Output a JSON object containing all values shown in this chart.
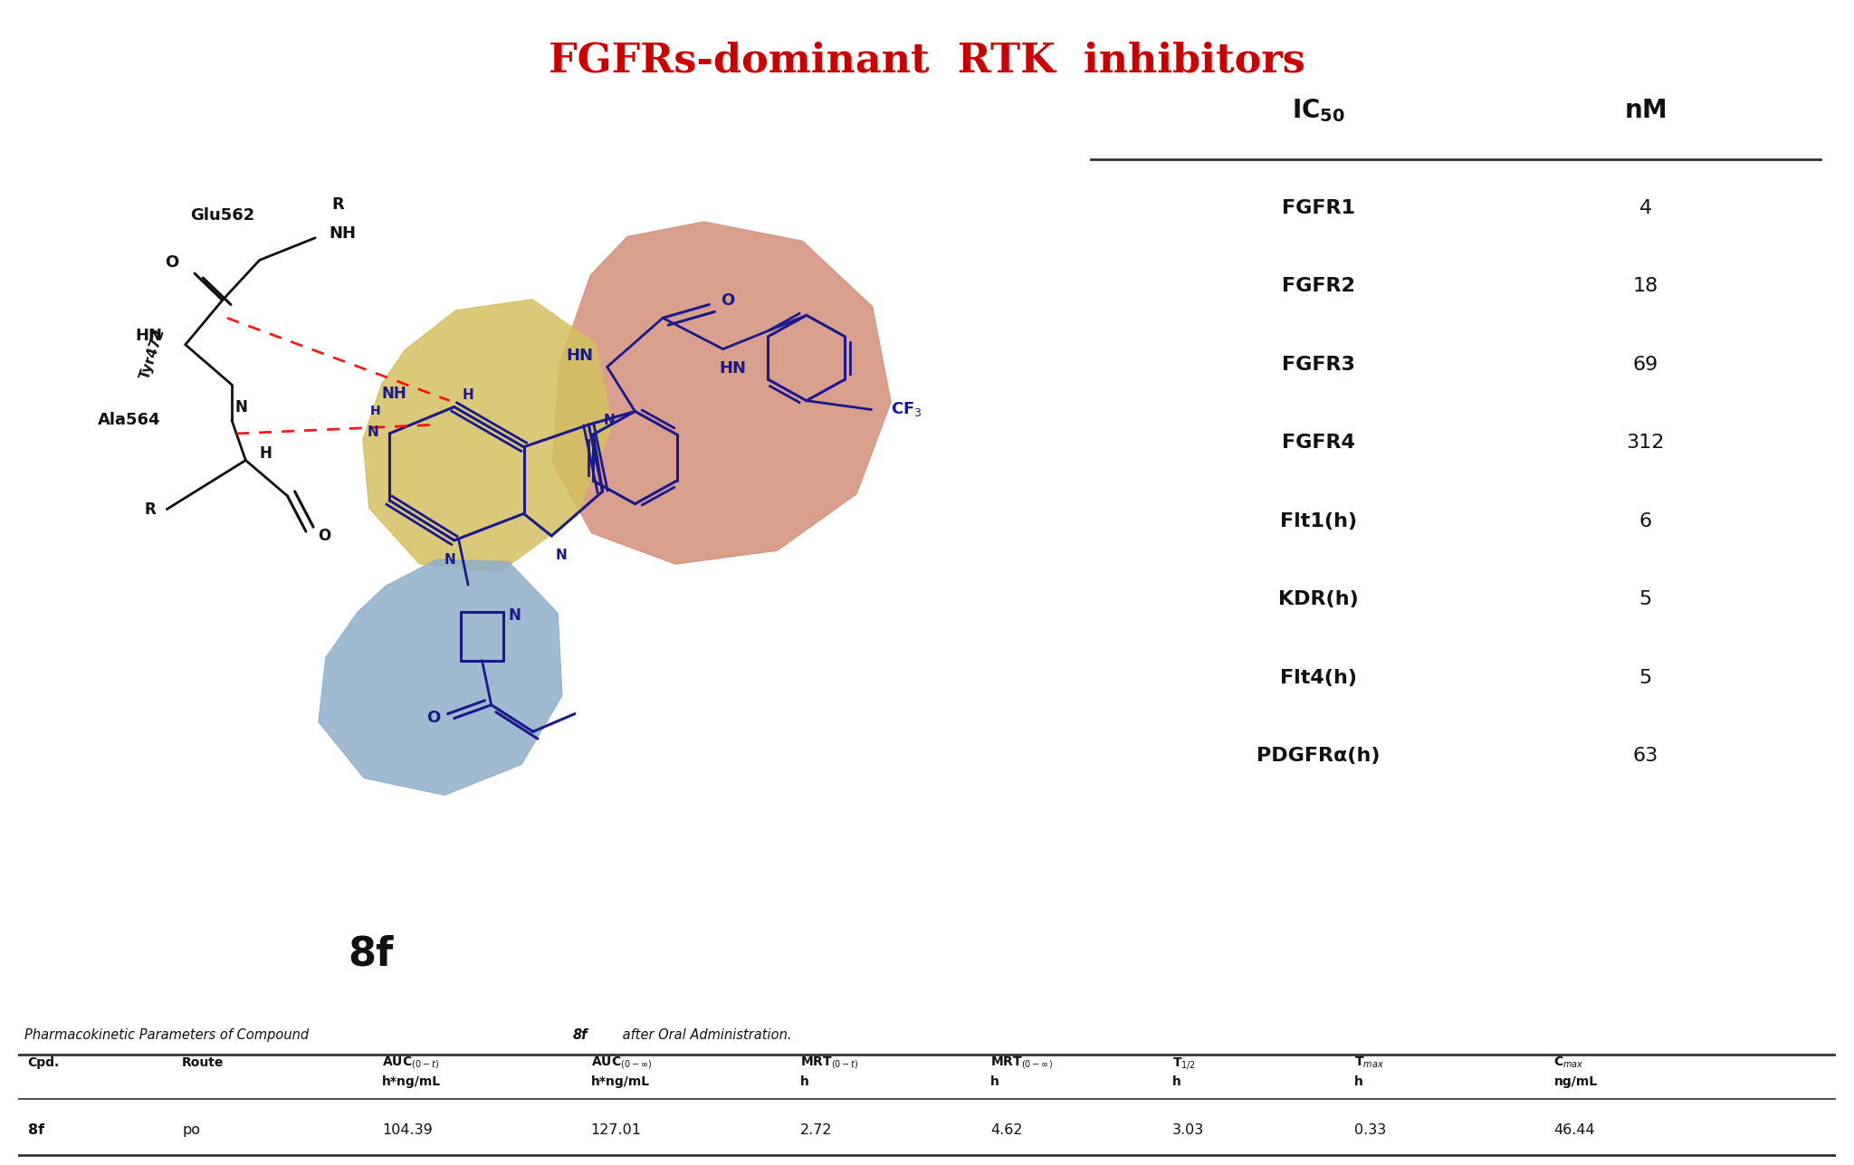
{
  "title": "FGFRs-dominant  RTK  inhibitors",
  "title_color": "#CC0000",
  "title_fontsize": 32,
  "ic50_rows": [
    [
      "FGFR1",
      "4"
    ],
    [
      "FGFR2",
      "18"
    ],
    [
      "FGFR3",
      "69"
    ],
    [
      "FGFR4",
      "312"
    ],
    [
      "Flt1(h)",
      "6"
    ],
    [
      "KDR(h)",
      "5"
    ],
    [
      "Flt4(h)",
      "5"
    ],
    [
      "PDGFRα(h)",
      "63"
    ]
  ],
  "compound_label": "8f",
  "pk_caption": "Pharmacokinetic Parameters of Compound 8f after Oral Administration.",
  "pk_row": [
    "8f",
    "po",
    "104.39",
    "127.01",
    "2.72",
    "4.62",
    "3.03",
    "0.33",
    "46.44"
  ],
  "blob_orange_color": "#D4907A",
  "blob_yellow_color": "#D4C060",
  "blob_blue_color": "#90AECB",
  "molecule_color": "#1A1A8C",
  "backbone_color": "#111111",
  "bg_color": "#FFFFFF"
}
